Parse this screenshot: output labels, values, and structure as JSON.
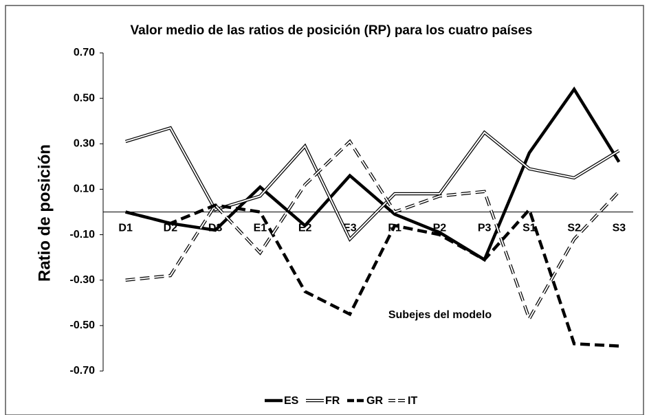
{
  "chart_data": {
    "type": "line",
    "title": "Valor medio de las ratios de posición (RP) para los cuatro países",
    "y_label": "Ratio de posición",
    "x_label": "Subejes del modelo",
    "categories": [
      "D1",
      "D2",
      "D3",
      "E1",
      "E2",
      "E3",
      "P1",
      "P2",
      "P3",
      "S1",
      "S2",
      "S3"
    ],
    "series": [
      {
        "name": "ES",
        "color": "#000000",
        "values": [
          0.0,
          -0.05,
          -0.08,
          0.11,
          -0.06,
          0.16,
          -0.01,
          -0.09,
          -0.21,
          0.26,
          0.54,
          0.22
        ]
      },
      {
        "name": "FR",
        "color": "#000000",
        "values": [
          0.31,
          0.37,
          0.01,
          0.07,
          0.29,
          -0.12,
          0.08,
          0.08,
          0.35,
          0.19,
          0.15,
          0.27
        ]
      },
      {
        "name": "GR",
        "color": "#000000",
        "values": [
          0.0,
          -0.05,
          0.03,
          0.0,
          -0.35,
          -0.45,
          -0.06,
          -0.1,
          -0.21,
          0.01,
          -0.58,
          -0.59
        ]
      },
      {
        "name": "IT",
        "color": "#000000",
        "values": [
          -0.3,
          -0.28,
          0.03,
          -0.18,
          0.12,
          0.31,
          0.0,
          0.07,
          0.09,
          -0.47,
          -0.12,
          0.09
        ]
      }
    ],
    "ylim": [
      -0.7,
      0.7
    ],
    "yticks": [
      {
        "value": 0.7,
        "label": "0.70"
      },
      {
        "value": 0.5,
        "label": "0.50"
      },
      {
        "value": 0.3,
        "label": "0.30"
      },
      {
        "value": 0.1,
        "label": "0.10"
      },
      {
        "value": -0.1,
        "label": "-0.10"
      },
      {
        "value": -0.3,
        "label": "-0.30"
      },
      {
        "value": -0.5,
        "label": "-0.50"
      },
      {
        "value": -0.7,
        "label": "-0.70"
      }
    ],
    "legend": "bottom"
  }
}
